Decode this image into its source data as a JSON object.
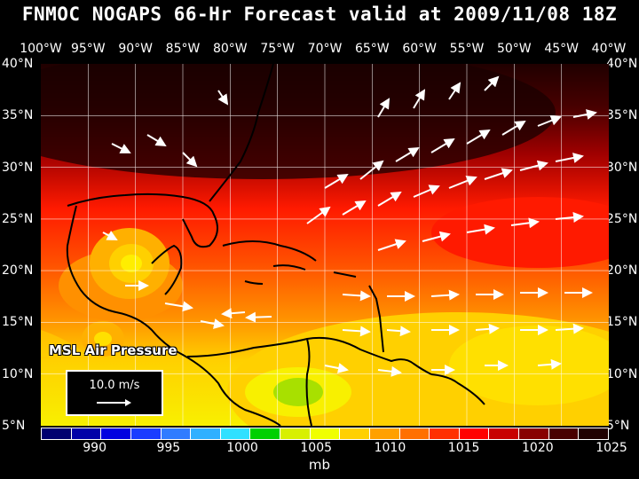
{
  "title": "FNMOC NOGAPS 66-Hr Forecast valid at 2009/11/08 18Z",
  "lon_labels": [
    "100°W",
    "95°W",
    "90°W",
    "85°W",
    "80°W",
    "75°W",
    "70°W",
    "65°W",
    "60°W",
    "55°W",
    "50°W",
    "45°W",
    "40°W"
  ],
  "lat_labels": [
    "40°N",
    "35°N",
    "30°N",
    "25°N",
    "20°N",
    "15°N",
    "10°N",
    "5°N"
  ],
  "panel_label": "MSL Air Pressure",
  "vector_reference": {
    "value": "10.0 m/s"
  },
  "colorbar": {
    "colors": [
      "#000070",
      "#0000a8",
      "#0000e0",
      "#1a3cff",
      "#2f7cff",
      "#30b0ff",
      "#30e0ff",
      "#00d000",
      "#d8f000",
      "#f0ff00",
      "#ffd000",
      "#ffa000",
      "#ff7000",
      "#ff3000",
      "#ff0000",
      "#c80000",
      "#880000",
      "#480000",
      "#200000"
    ],
    "tick_labels": [
      "990",
      "995",
      "1000",
      "1005",
      "1010",
      "1015",
      "1020",
      "1025"
    ],
    "units": "mb"
  }
}
